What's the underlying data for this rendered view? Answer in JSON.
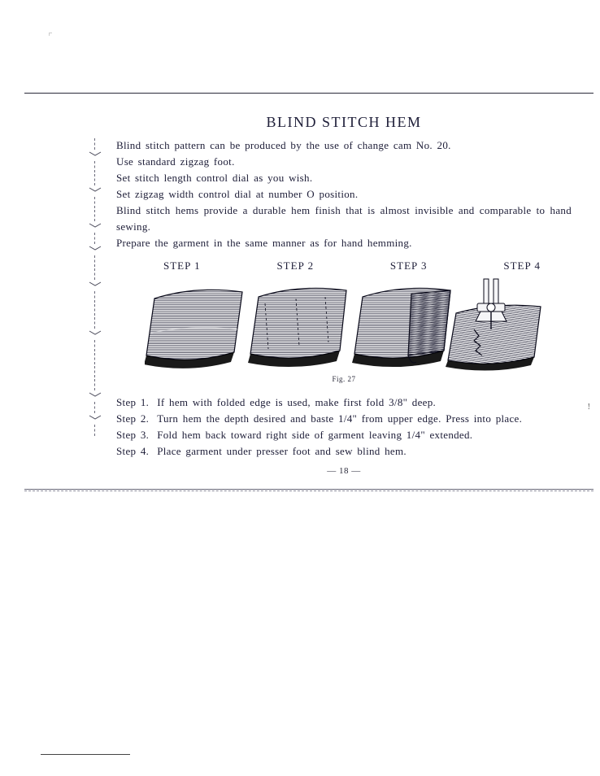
{
  "ink_color": "#20203a",
  "bg_color": "#ffffff",
  "title": "BLIND STITCH HEM",
  "title_fontsize": 18,
  "body_fontsize": 13,
  "intro_lines": [
    "Blind stitch pattern can be produced by the use of change cam No. 20.",
    "Use standard zigzag foot.",
    "Set stitch length control dial  as you wish.",
    "Set zigzag  width  control  dial  at number O position.",
    "Blind stitch hems provide a durable hem finish that is  almost  invisible  and  comparable to hand sewing.",
    "Prepare the garment in the same manner as for hand hemming."
  ],
  "intro_justify_flags": [
    false,
    false,
    false,
    false,
    true,
    false
  ],
  "step_labels": [
    "STEP 1",
    "STEP 2",
    "STEP 3",
    "STEP 4"
  ],
  "figure_caption": "Fig. 27",
  "steps": [
    {
      "label": "Step 1.",
      "text": "If hem with folded edge is used, make first fold 3/8\" deep."
    },
    {
      "label": "Step 2.",
      "text": "Turn hem the depth desired and baste 1/4\" from upper edge. Press into place."
    },
    {
      "label": "Step 3.",
      "text": "Fold hem back toward right side of garment leaving 1/4\" extended."
    },
    {
      "label": "Step 4.",
      "text": "Place garment under presser foot and sew blind hem."
    }
  ],
  "page_number": "— 18 —",
  "figure": {
    "type": "diagram",
    "panels": 4,
    "hatch_color": "#26263a",
    "hatch_spacing": 2.2,
    "hatch_angle_deg": 0,
    "outline_color": "#0a0a1a",
    "shadow_color": "#000000"
  }
}
